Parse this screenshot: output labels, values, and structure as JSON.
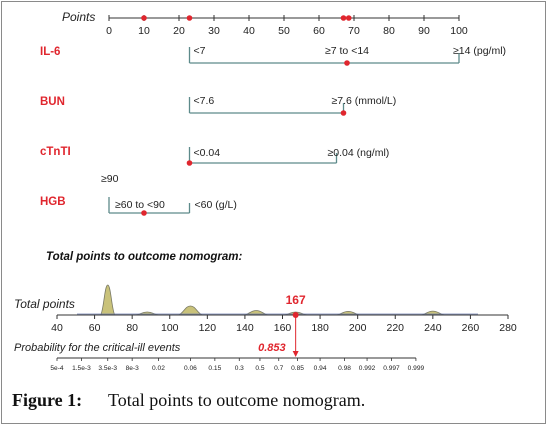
{
  "chart_data": {
    "type": "nomogram",
    "colors": {
      "accent": "#e0262e",
      "axis": "#5d8a8a",
      "bump_fill": "#c9c27a",
      "bump_stroke": "#7a7a66",
      "text": "#222222"
    },
    "points_scale": {
      "label": "Points",
      "min": 0,
      "max": 100,
      "ticks": [
        "0",
        "10",
        "20",
        "30",
        "40",
        "50",
        "60",
        "70",
        "80",
        "90",
        "100"
      ],
      "markers": [
        10,
        23,
        67,
        68.5
      ]
    },
    "variables": [
      {
        "name": "IL-6",
        "start": 23,
        "end": 100,
        "levels": [
          {
            "label": "<7",
            "points": 23
          },
          {
            "label": "≥7 to <14",
            "points": 68
          },
          {
            "label": "≥14 (pg/ml)",
            "points": 100
          }
        ],
        "selected": 68
      },
      {
        "name": "BUN",
        "start": 23,
        "end": 67,
        "levels": [
          {
            "label": "<7.6",
            "points": 23
          },
          {
            "label": "≥7.6 (mmol/L)",
            "points": 67
          }
        ],
        "selected": 67
      },
      {
        "name": "cTnTI",
        "start": 23,
        "end": 65,
        "levels": [
          {
            "label": "<0.04",
            "points": 23
          },
          {
            "label": "≥0.04 (ng/ml)",
            "points": 65
          }
        ],
        "selected": 23
      },
      {
        "name": "HGB",
        "start": 0,
        "end": 23,
        "levels": [
          {
            "label": "≥90",
            "points": 0
          },
          {
            "label": "≥60 to <90",
            "points": 10
          },
          {
            "label": "<60 (g/L)",
            "points": 23
          }
        ],
        "selected": 10
      }
    ],
    "section_title": "Total points to outcome nomogram:",
    "total_points": {
      "label": "Total points",
      "min": 40,
      "max": 280,
      "ticks": [
        "40",
        "60",
        "80",
        "100",
        "120",
        "140",
        "160",
        "180",
        "200",
        "220",
        "240",
        "260",
        "280"
      ],
      "value": 167,
      "value_label": "167",
      "density_peaks": [
        {
          "center": 67,
          "height": 1.0
        },
        {
          "center": 88,
          "height": 0.1
        },
        {
          "center": 111,
          "height": 0.3
        },
        {
          "center": 146,
          "height": 0.15
        },
        {
          "center": 167,
          "height": 0.1
        },
        {
          "center": 195,
          "height": 0.12
        },
        {
          "center": 240,
          "height": 0.13
        }
      ]
    },
    "probability": {
      "label": "Probability for the critical-ill events",
      "value_label": "0.853",
      "ticks": [
        {
          "label": "5e-4",
          "at": 40
        },
        {
          "label": "1.5e-3",
          "at": 53
        },
        {
          "label": "3.5e-3",
          "at": 67
        },
        {
          "label": "8e-3",
          "at": 80
        },
        {
          "label": "0.02",
          "at": 94
        },
        {
          "label": "0.06",
          "at": 111
        },
        {
          "label": "0.15",
          "at": 124
        },
        {
          "label": "0.3",
          "at": 137
        },
        {
          "label": "0.5",
          "at": 148
        },
        {
          "label": "0.7",
          "at": 158
        },
        {
          "label": "0.85",
          "at": 168
        },
        {
          "label": "0.94",
          "at": 180
        },
        {
          "label": "0.98",
          "at": 193
        },
        {
          "label": "0.992",
          "at": 205
        },
        {
          "label": "0.997",
          "at": 218
        },
        {
          "label": "0.999",
          "at": 231
        }
      ]
    }
  },
  "caption": {
    "label": "Figure 1:",
    "text": "Total points to outcome nomogram."
  }
}
